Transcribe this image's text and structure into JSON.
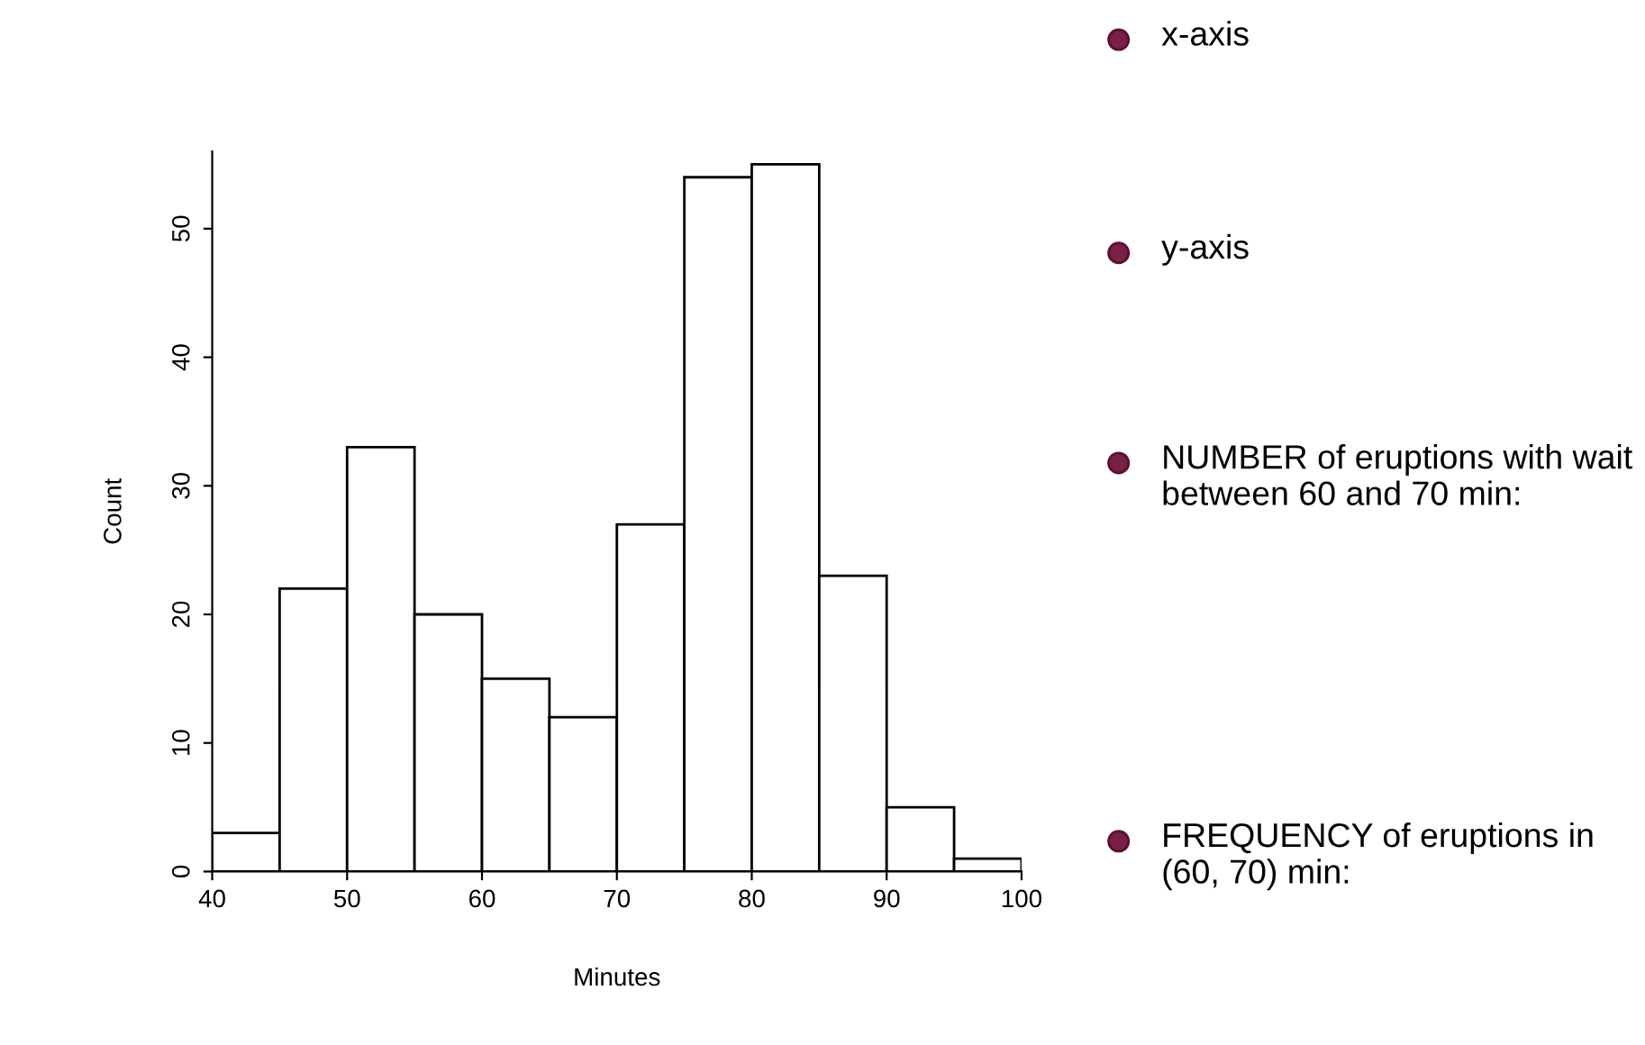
{
  "chart_data": {
    "type": "histogram",
    "xlabel": "Minutes",
    "ylabel": "Count",
    "bins": [
      40,
      45,
      50,
      55,
      60,
      65,
      70,
      75,
      80,
      85,
      90,
      95,
      100
    ],
    "values": [
      3,
      22,
      33,
      20,
      15,
      12,
      27,
      54,
      55,
      23,
      5,
      1
    ],
    "color": "#ffffff",
    "xlim": [
      40,
      100
    ],
    "ylim": [
      0,
      56
    ],
    "xticks": [
      40,
      50,
      60,
      70,
      80,
      90,
      100
    ],
    "yticks": [
      0,
      10,
      20,
      30,
      40,
      50
    ],
    "grid": false,
    "legend": false,
    "annotations": [
      "x-axis",
      "y-axis",
      "NUMBER of eruptions with wait between 60 and 70 min:",
      "FREQUENCY of eruptions in (60, 70) min:"
    ]
  }
}
